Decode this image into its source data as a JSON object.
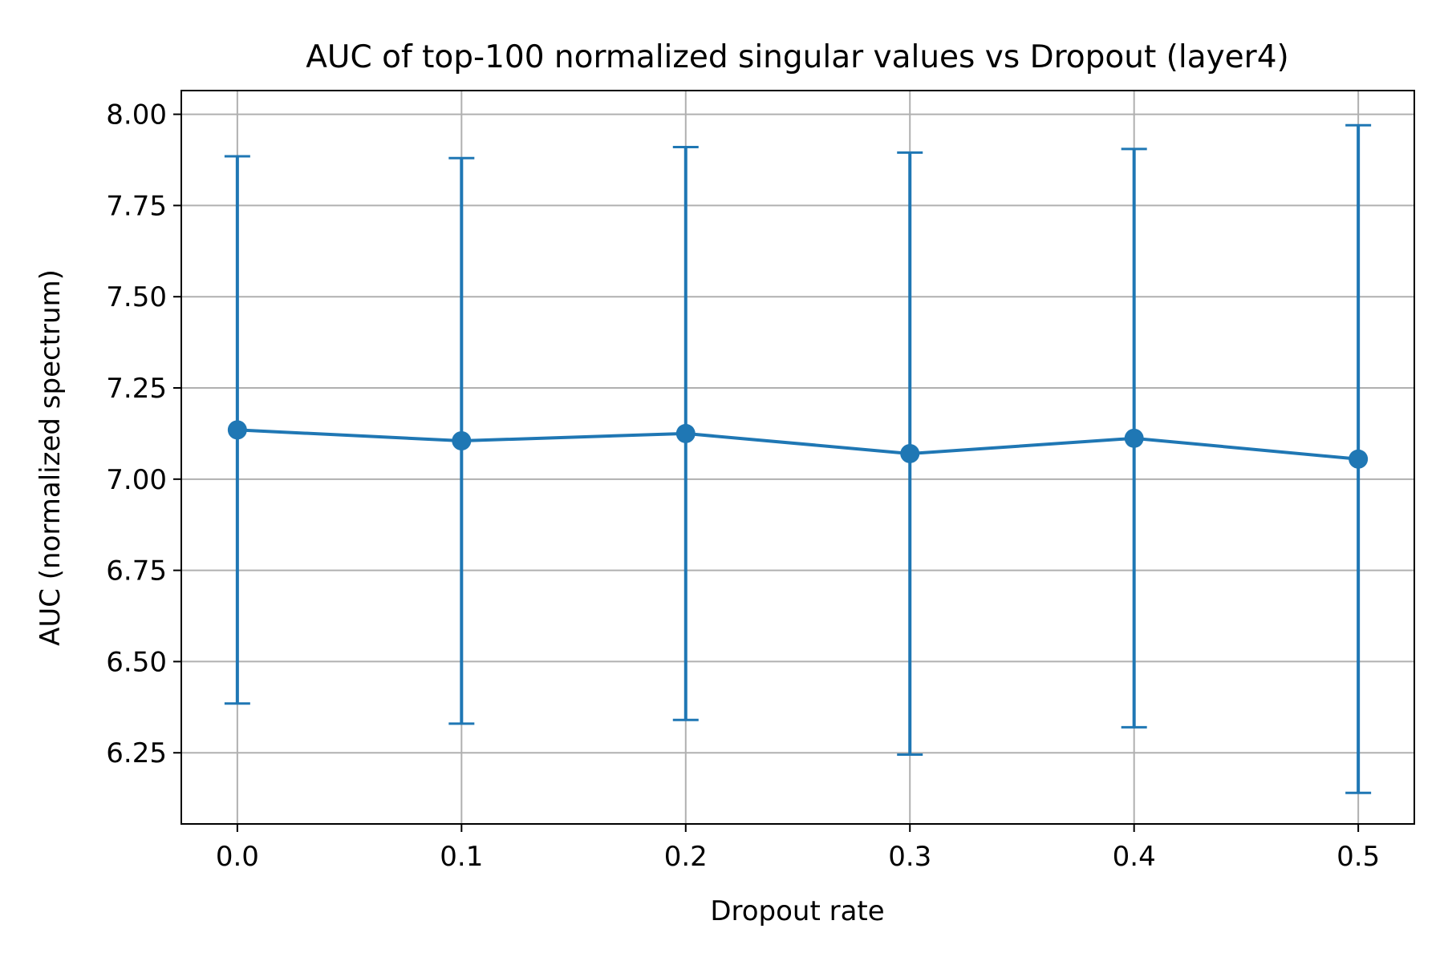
{
  "chart_data": {
    "type": "line",
    "title": "AUC of top-100 normalized singular values vs Dropout (layer4)",
    "xlabel": "Dropout rate",
    "ylabel": "AUC (normalized spectrum)",
    "x": [
      0.0,
      0.1,
      0.2,
      0.3,
      0.4,
      0.5
    ],
    "x_tick_labels": [
      "0.0",
      "0.1",
      "0.2",
      "0.3",
      "0.4",
      "0.5"
    ],
    "y_ticks": [
      6.25,
      6.5,
      6.75,
      7.0,
      7.25,
      7.5,
      7.75,
      8.0
    ],
    "y_tick_labels": [
      "6.25",
      "6.50",
      "6.75",
      "7.00",
      "7.25",
      "7.50",
      "7.75",
      "8.00"
    ],
    "xlim": [
      -0.025,
      0.525
    ],
    "ylim": [
      6.055,
      8.065
    ],
    "grid": true,
    "series": [
      {
        "values": [
          7.135,
          7.105,
          7.125,
          7.07,
          7.112,
          7.055
        ],
        "error_low": [
          6.385,
          6.33,
          6.34,
          6.245,
          6.32,
          6.14
        ],
        "error_high": [
          7.885,
          7.88,
          7.91,
          7.895,
          7.905,
          7.97
        ],
        "color": "#1f77b4",
        "marker": "circle"
      }
    ]
  }
}
